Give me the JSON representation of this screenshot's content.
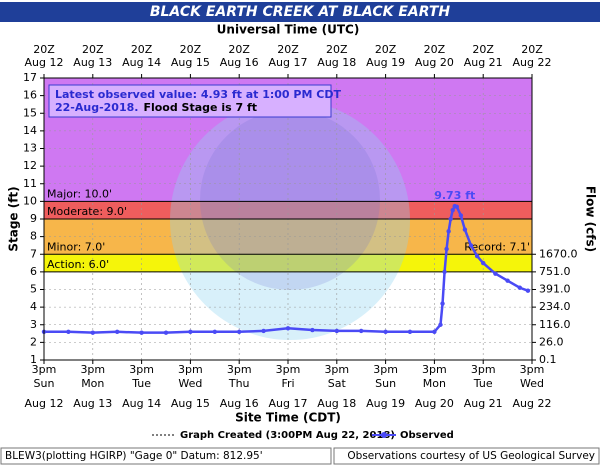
{
  "chart_data": {
    "type": "line",
    "title": "BLACK EARTH CREEK AT BLACK EARTH",
    "top_axis_label": "Universal Time (UTC)",
    "x_axis_label": "Site Time (CDT)",
    "y_axis_label": "Stage (ft)",
    "y2_axis_label": "Flow (cfs)",
    "ylim": [
      1,
      17
    ],
    "yticks": [
      1,
      2,
      3,
      4,
      5,
      6,
      7,
      8,
      9,
      10,
      11,
      12,
      13,
      14,
      15,
      16,
      17
    ],
    "grid": true,
    "xlim": [
      "Aug 12 3pm",
      "Aug 22 3pm"
    ],
    "xticks": [
      {
        "time": "3pm",
        "weekday": "Sun",
        "date": "Aug 12"
      },
      {
        "time": "3pm",
        "weekday": "Mon",
        "date": "Aug 13"
      },
      {
        "time": "3pm",
        "weekday": "Tue",
        "date": "Aug 14"
      },
      {
        "time": "3pm",
        "weekday": "Wed",
        "date": "Aug 15"
      },
      {
        "time": "3pm",
        "weekday": "Thu",
        "date": "Aug 16"
      },
      {
        "time": "3pm",
        "weekday": "Fri",
        "date": "Aug 17"
      },
      {
        "time": "3pm",
        "weekday": "Sat",
        "date": "Aug 18"
      },
      {
        "time": "3pm",
        "weekday": "Sun",
        "date": "Aug 19"
      },
      {
        "time": "3pm",
        "weekday": "Mon",
        "date": "Aug 20"
      },
      {
        "time": "3pm",
        "weekday": "Tue",
        "date": "Aug 21"
      },
      {
        "time": "3pm",
        "weekday": "Wed",
        "date": "Aug 22"
      }
    ],
    "top_xticks": [
      {
        "time": "20Z",
        "date": "Aug 12"
      },
      {
        "time": "20Z",
        "date": "Aug 13"
      },
      {
        "time": "20Z",
        "date": "Aug 14"
      },
      {
        "time": "20Z",
        "date": "Aug 15"
      },
      {
        "time": "20Z",
        "date": "Aug 16"
      },
      {
        "time": "20Z",
        "date": "Aug 17"
      },
      {
        "time": "20Z",
        "date": "Aug 18"
      },
      {
        "time": "20Z",
        "date": "Aug 19"
      },
      {
        "time": "20Z",
        "date": "Aug 20"
      },
      {
        "time": "20Z",
        "date": "Aug 21"
      },
      {
        "time": "20Z",
        "date": "Aug 22"
      }
    ],
    "flow_ticks": [
      {
        "value": 0.1,
        "label": "0.1",
        "stage": 1
      },
      {
        "value": 26,
        "label": "26.0",
        "stage": 2
      },
      {
        "value": 116,
        "label": "116.0",
        "stage": 3
      },
      {
        "value": 234,
        "label": "234.0",
        "stage": 4
      },
      {
        "value": 391,
        "label": "391.0",
        "stage": 5
      },
      {
        "value": 751,
        "label": "751.0",
        "stage": 6
      },
      {
        "value": 1670,
        "label": "1670.0",
        "stage": 7
      }
    ],
    "flood_categories": [
      {
        "label": "Action: 6.0'",
        "stage": 6,
        "color": "#f5f50a"
      },
      {
        "label": "Minor: 7.0'",
        "stage": 7,
        "color": "#f7b64a"
      },
      {
        "label": "Moderate: 9.0'",
        "stage": 9,
        "color": "#ef5d5d"
      },
      {
        "label": "Major: 10.0'",
        "stage": 10,
        "color": "#cf78f2"
      }
    ],
    "record": {
      "label": "Record: 7.1'",
      "stage": 7.1
    },
    "info": {
      "line1": "Latest observed value: 4.93 ft at 1:00 PM CDT",
      "date": "22-Aug-2018.",
      "flood_stage": "Flood Stage is 7 ft"
    },
    "peak_label": {
      "label": "9.73 ft",
      "value": 9.73
    },
    "series": [
      {
        "name": "Observed",
        "color": "#4a4af5",
        "x": [
          "Aug 12 3pm",
          "Aug 13 3am",
          "Aug 13 3pm",
          "Aug 14 3am",
          "Aug 14 3pm",
          "Aug 15 3am",
          "Aug 15 3pm",
          "Aug 16 3am",
          "Aug 16 3pm",
          "Aug 17 3am",
          "Aug 17 3pm",
          "Aug 18 3am",
          "Aug 18 3pm",
          "Aug 19 3am",
          "Aug 19 3pm",
          "Aug 20 3am",
          "Aug 20 3pm",
          "Aug 20 6pm",
          "Aug 20 7pm",
          "Aug 20 8pm",
          "Aug 20 9pm",
          "Aug 20 10pm",
          "Aug 20 11pm",
          "Aug 21 12am",
          "Aug 21 1am",
          "Aug 21 2am",
          "Aug 21 4am",
          "Aug 21 6am",
          "Aug 21 9am",
          "Aug 21 12pm",
          "Aug 21 3pm",
          "Aug 21 9pm",
          "Aug 22 3am",
          "Aug 22 9am",
          "Aug 22 1pm"
        ],
        "values": [
          2.6,
          2.6,
          2.55,
          2.6,
          2.55,
          2.55,
          2.6,
          2.6,
          2.6,
          2.65,
          2.8,
          2.7,
          2.65,
          2.65,
          2.6,
          2.6,
          2.6,
          3.0,
          4.2,
          6.0,
          7.3,
          8.3,
          9.0,
          9.5,
          9.73,
          9.7,
          9.2,
          8.4,
          7.5,
          6.9,
          6.5,
          5.9,
          5.5,
          5.1,
          4.93
        ]
      }
    ],
    "legend": {
      "created": "Graph Created (3:00PM Aug 22, 2018)"
    },
    "footer": {
      "left": "BLEW3(plotting HGIRP) \"Gage 0\" Datum: 812.95'",
      "right": "Observations courtesy of US Geological Survey"
    }
  }
}
